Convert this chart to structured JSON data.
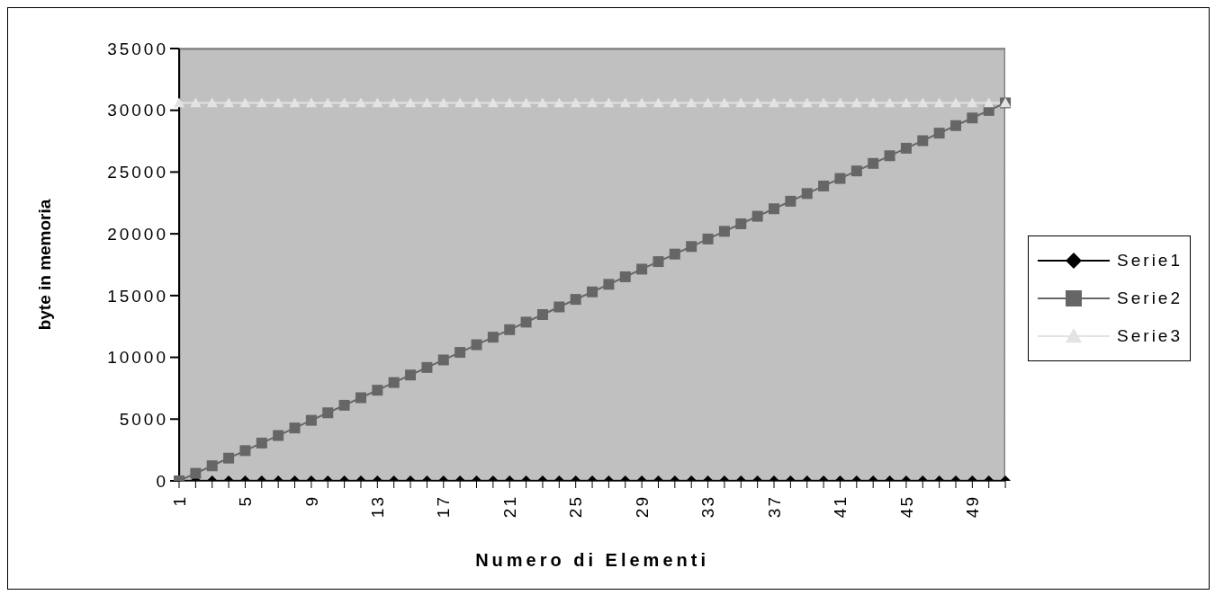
{
  "chart_data": {
    "type": "line",
    "xlabel": "Numero di Elementi",
    "ylabel": "byte in memoria",
    "categories": [
      "1",
      null,
      null,
      null,
      "5",
      null,
      null,
      null,
      "9",
      null,
      null,
      null,
      "13",
      null,
      null,
      null,
      "17",
      null,
      null,
      null,
      "21",
      null,
      null,
      null,
      "25",
      null,
      null,
      null,
      "29",
      null,
      null,
      null,
      "33",
      null,
      null,
      null,
      "37",
      null,
      null,
      null,
      "41",
      null,
      null,
      null,
      "45",
      null,
      null,
      null,
      "49",
      null,
      null
    ],
    "series": [
      {
        "name": "Serie1",
        "color": "#000000",
        "marker": "diamond",
        "values": [
          0,
          0,
          0,
          0,
          0,
          0,
          0,
          0,
          0,
          0,
          0,
          0,
          0,
          0,
          0,
          0,
          0,
          0,
          0,
          0,
          0,
          0,
          0,
          0,
          0,
          0,
          0,
          0,
          0,
          0,
          0,
          0,
          0,
          0,
          0,
          0,
          0,
          0,
          0,
          0,
          0,
          0,
          0,
          0,
          0,
          0,
          0,
          0,
          0,
          0,
          0
        ]
      },
      {
        "name": "Serie2",
        "color": "#666666",
        "marker": "square",
        "values": [
          0,
          610,
          1220,
          1840,
          2450,
          3060,
          3670,
          4280,
          4900,
          5510,
          6120,
          6730,
          7340,
          7960,
          8570,
          9180,
          9790,
          10400,
          11020,
          11630,
          12240,
          12850,
          13460,
          14080,
          14690,
          15300,
          15910,
          16520,
          17140,
          17750,
          18360,
          18970,
          19580,
          20200,
          20810,
          21420,
          22030,
          22640,
          23260,
          23870,
          24480,
          25090,
          25700,
          26320,
          26930,
          27540,
          28150,
          28760,
          29380,
          29990,
          30600
        ]
      },
      {
        "name": "Serie3",
        "color": "#e3e3e3",
        "marker": "triangle",
        "values": [
          30600,
          30600,
          30600,
          30600,
          30600,
          30600,
          30600,
          30600,
          30600,
          30600,
          30600,
          30600,
          30600,
          30600,
          30600,
          30600,
          30600,
          30600,
          30600,
          30600,
          30600,
          30600,
          30600,
          30600,
          30600,
          30600,
          30600,
          30600,
          30600,
          30600,
          30600,
          30600,
          30600,
          30600,
          30600,
          30600,
          30600,
          30600,
          30600,
          30600,
          30600,
          30600,
          30600,
          30600,
          30600,
          30600,
          30600,
          30600,
          30600,
          30600,
          30600
        ]
      }
    ],
    "ylim": [
      0,
      35000
    ],
    "yticks": [
      0,
      5000,
      10000,
      15000,
      20000,
      25000,
      30000,
      35000
    ],
    "grid": "y",
    "legend": "right"
  }
}
